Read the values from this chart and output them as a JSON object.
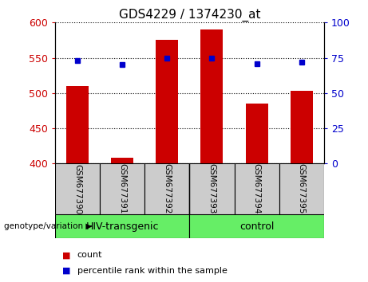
{
  "title": "GDS4229 / 1374230_at",
  "samples": [
    "GSM677390",
    "GSM677391",
    "GSM677392",
    "GSM677393",
    "GSM677394",
    "GSM677395"
  ],
  "bar_values": [
    510,
    408,
    575,
    590,
    485,
    503
  ],
  "percentile_values": [
    73,
    70,
    75,
    75,
    71,
    72
  ],
  "bar_color": "#cc0000",
  "dot_color": "#0000cc",
  "ylim_left": [
    400,
    600
  ],
  "ylim_right": [
    0,
    100
  ],
  "yticks_left": [
    400,
    450,
    500,
    550,
    600
  ],
  "yticks_right": [
    0,
    25,
    50,
    75,
    100
  ],
  "groups": [
    {
      "label": "HIV-transgenic",
      "start": 0,
      "end": 3
    },
    {
      "label": "control",
      "start": 3,
      "end": 6
    }
  ],
  "group_color": "#66ee66",
  "tick_area_color": "#cccccc",
  "background_color": "white",
  "legend_count_label": "count",
  "legend_percentile_label": "percentile rank within the sample",
  "genotype_label": "genotype/variation"
}
